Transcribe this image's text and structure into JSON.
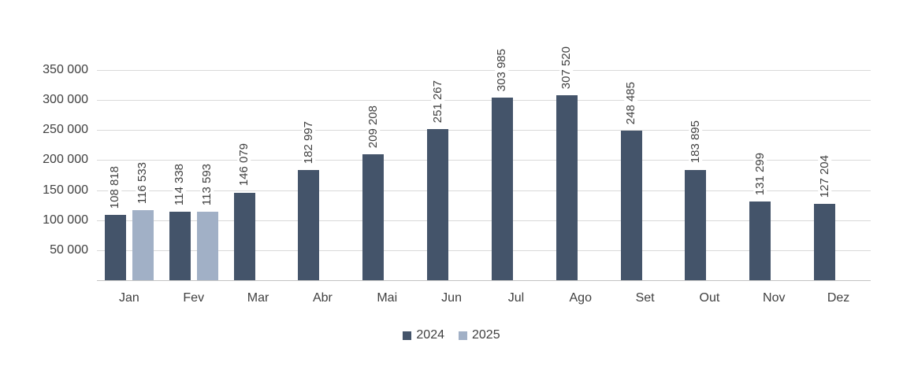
{
  "chart_data": {
    "type": "bar",
    "title": "",
    "categories": [
      "Jan",
      "Fev",
      "Mar",
      "Abr",
      "Mai",
      "Jun",
      "Jul",
      "Ago",
      "Set",
      "Out",
      "Nov",
      "Dez"
    ],
    "series": [
      {
        "name": "2024",
        "color": "#44546A",
        "values": [
          108818,
          114338,
          146079,
          182997,
          209208,
          251267,
          303985,
          307520,
          248485,
          183895,
          131299,
          127204
        ],
        "labels": [
          "108 818",
          "114 338",
          "146 079",
          "182 997",
          "209 208",
          "251 267",
          "303 985",
          "307 520",
          "248 485",
          "183 895",
          "131 299",
          "127 204"
        ]
      },
      {
        "name": "2025",
        "color": "#A1B0C6",
        "values": [
          116533,
          113593,
          null,
          null,
          null,
          null,
          null,
          null,
          null,
          null,
          null,
          null
        ],
        "labels": [
          "116 533",
          "113 593",
          null,
          null,
          null,
          null,
          null,
          null,
          null,
          null,
          null,
          null
        ]
      }
    ],
    "y_axis": {
      "min": 0,
      "max": 350000,
      "step": 50000,
      "ticks": [
        50000,
        100000,
        150000,
        200000,
        250000,
        300000,
        350000
      ],
      "tick_labels": [
        "50 000",
        "100 000",
        "150 000",
        "200 000",
        "250 000",
        "300 000",
        "350 000"
      ]
    },
    "grid": true,
    "legend_position": "bottom",
    "data_label_rotation": "vertical"
  },
  "legend": {
    "items": [
      {
        "label": "2024",
        "color": "#44546A"
      },
      {
        "label": "2025",
        "color": "#A1B0C6"
      }
    ]
  },
  "colors": {
    "text": "#404040",
    "gridline": "#D9D9D9",
    "axis_line": "#C3C3C3",
    "background": "#FFFFFF",
    "series_2024": "#44546A",
    "series_2025": "#A1B0C6"
  }
}
